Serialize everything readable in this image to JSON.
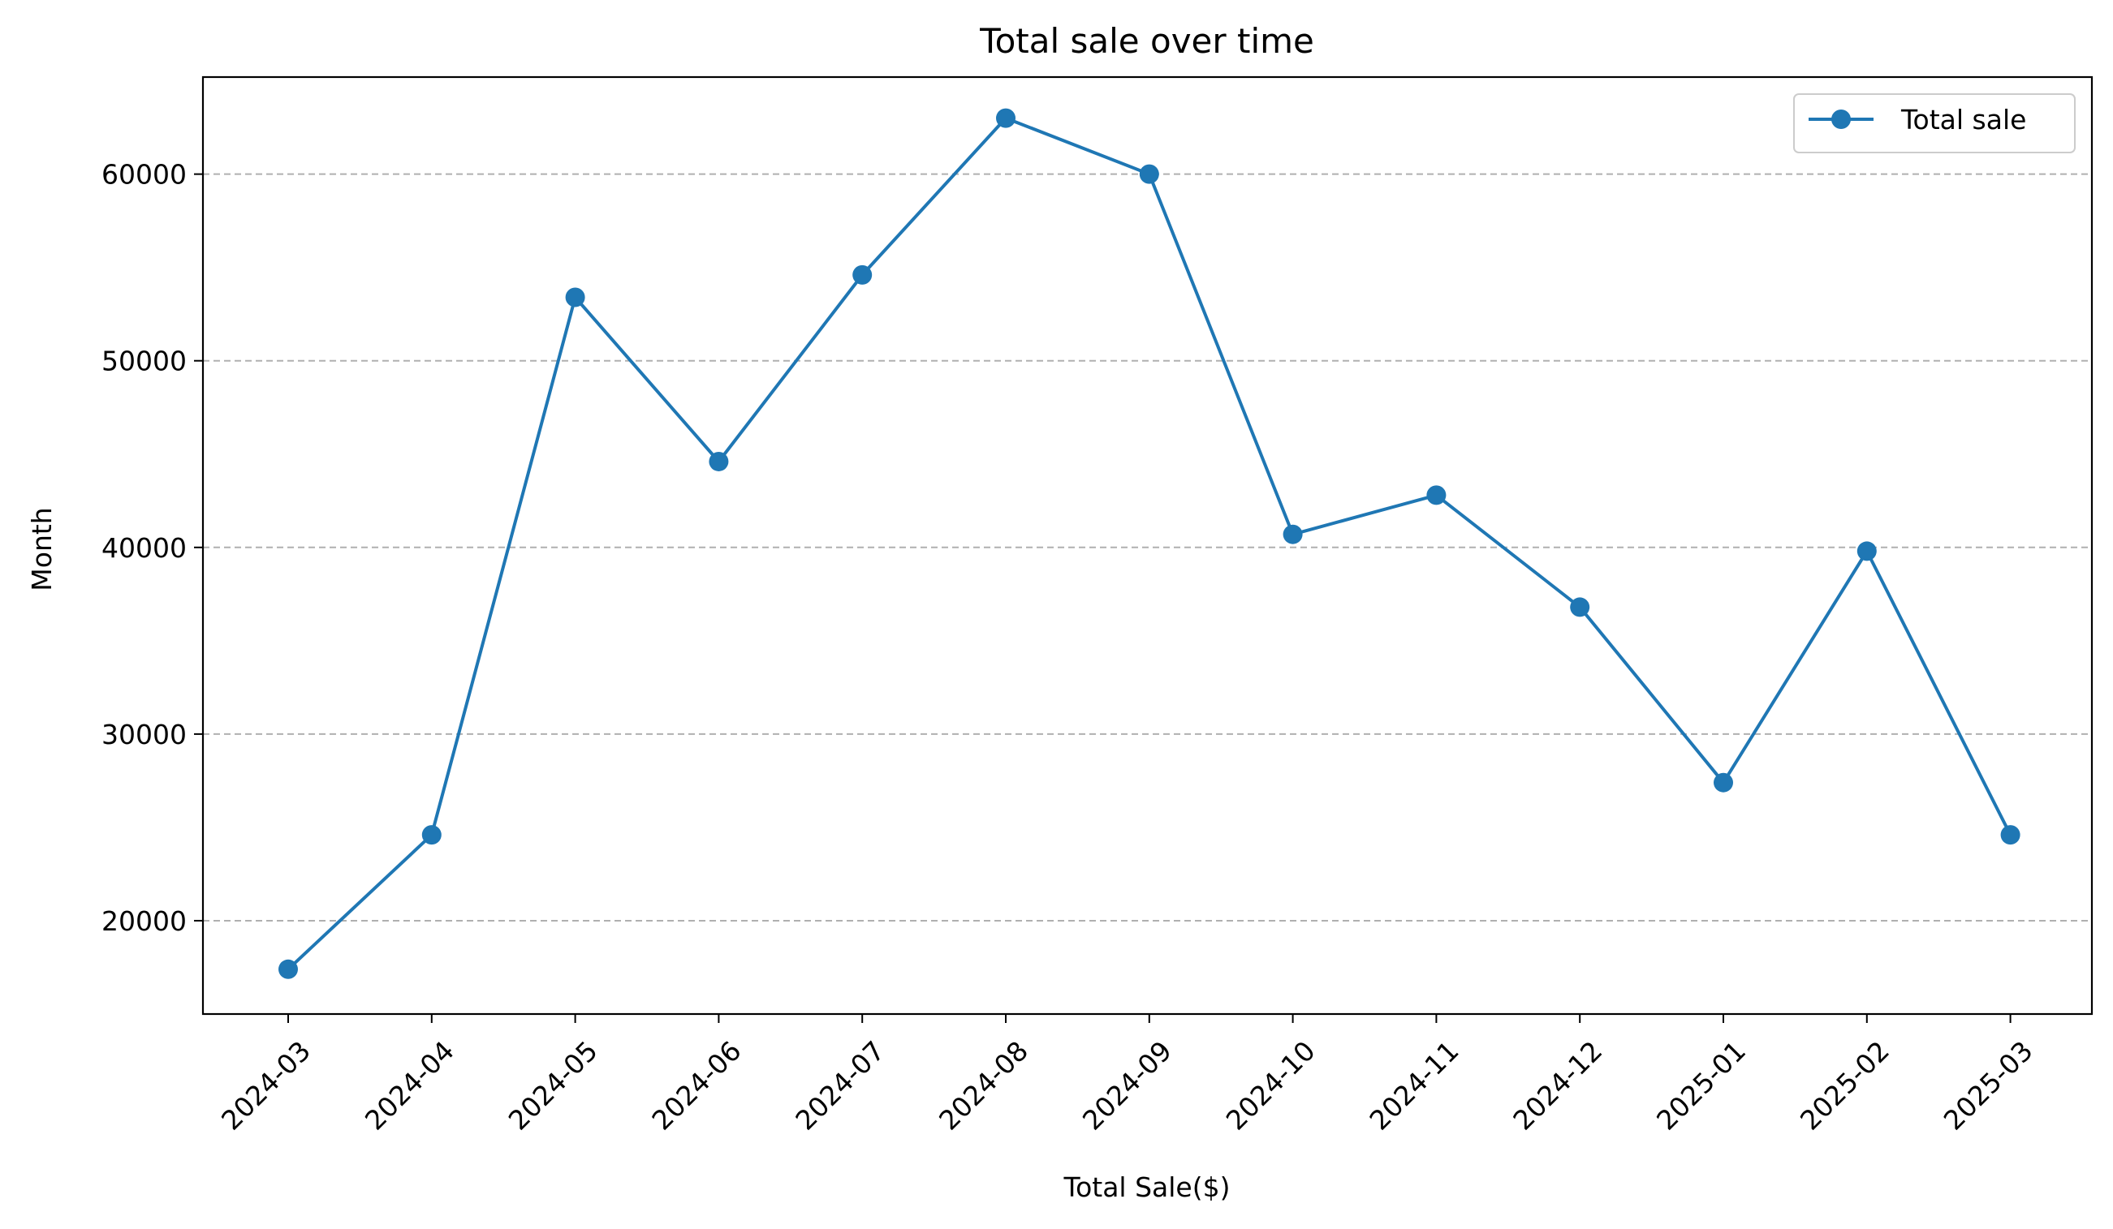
{
  "chart_data": {
    "type": "line",
    "title": "Total sale over time",
    "xlabel": "Total Sale($)",
    "ylabel": "Month",
    "categories": [
      "2024-03",
      "2024-04",
      "2024-05",
      "2024-06",
      "2024-07",
      "2024-08",
      "2024-09",
      "2024-10",
      "2024-11",
      "2024-12",
      "2025-01",
      "2025-02",
      "2025-03"
    ],
    "series": [
      {
        "name": "Total sale",
        "color": "#1f77b4",
        "values": [
          17400,
          24600,
          53400,
          44600,
          54600,
          63000,
          60000,
          40700,
          42800,
          36800,
          27400,
          39800,
          24600
        ]
      }
    ],
    "yticks": [
      20000,
      30000,
      40000,
      50000,
      60000
    ],
    "ytick_labels": [
      "20000",
      "30000",
      "40000",
      "50000",
      "60000"
    ],
    "ylim": [
      15000,
      65200
    ],
    "grid": "y-axis dashed",
    "legend_position": "top-right"
  }
}
